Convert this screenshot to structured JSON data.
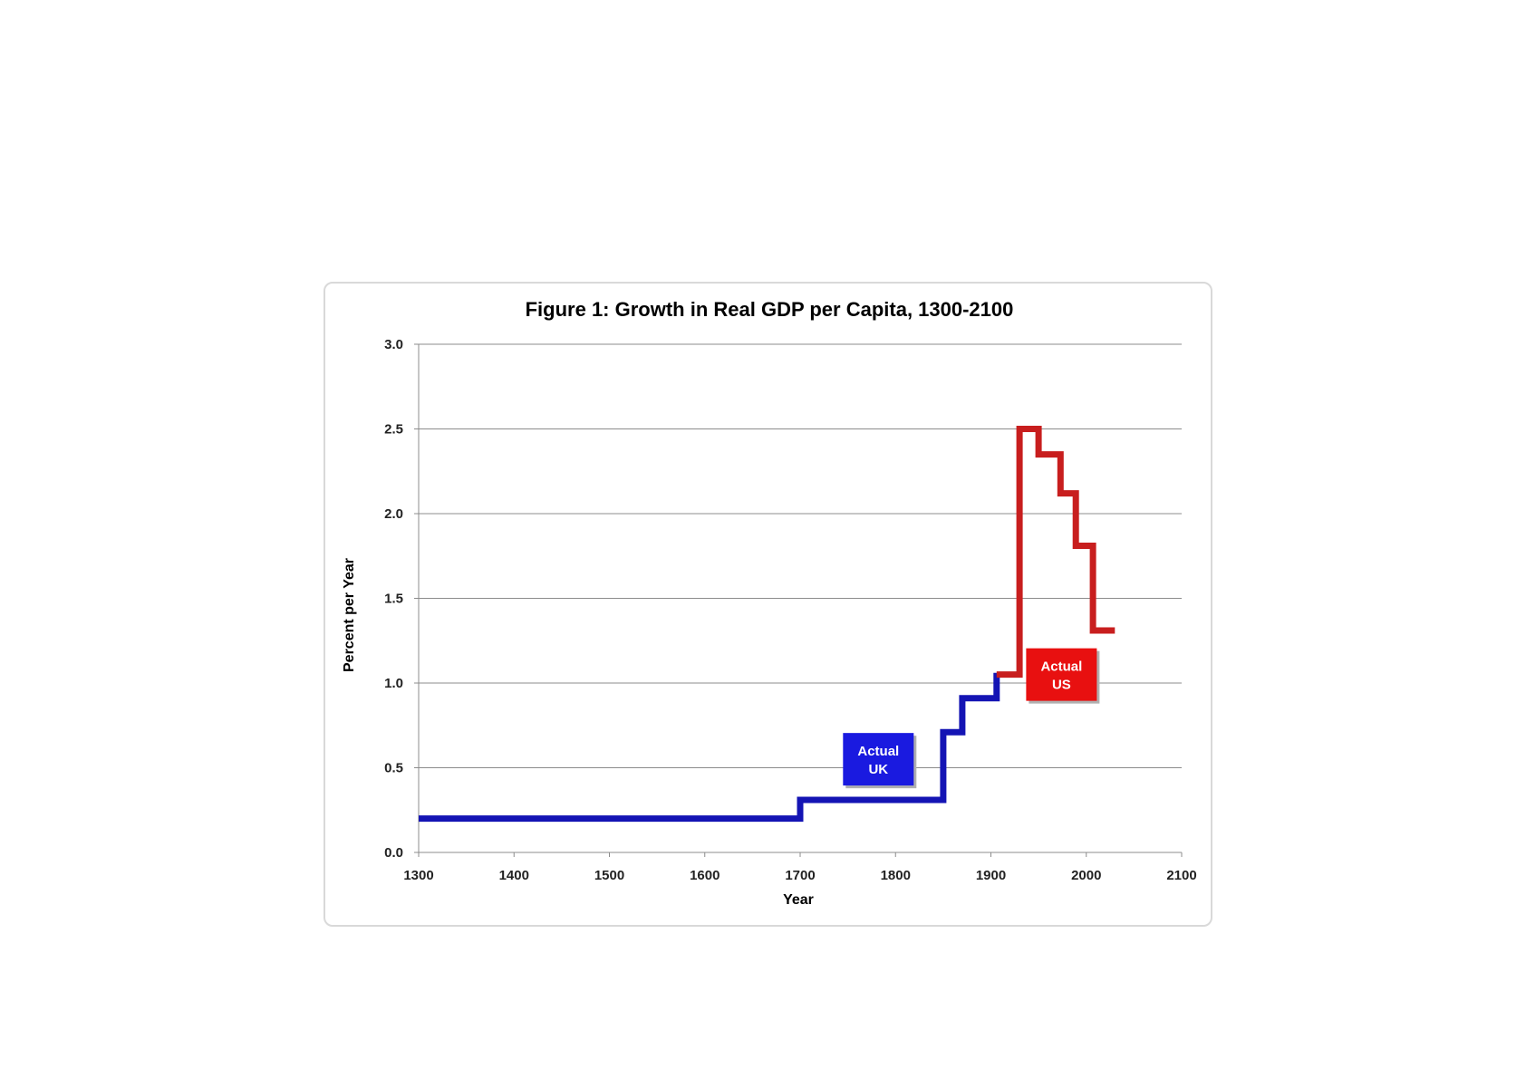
{
  "chart_data": {
    "type": "line",
    "title": "Figure 1: Growth in Real GDP per Capita, 1300-2100",
    "xlabel": "Year",
    "ylabel": "Percent per Year",
    "xlim": [
      1300,
      2100
    ],
    "ylim": [
      0,
      3.0
    ],
    "x_ticks": [
      "1300",
      "1400",
      "1500",
      "1600",
      "1700",
      "1800",
      "1900",
      "2000",
      "2100"
    ],
    "y_ticks": [
      "0.0",
      "0.5",
      "1.0",
      "1.5",
      "2.0",
      "2.5",
      "3.0"
    ],
    "grid": true,
    "step": true,
    "series": [
      {
        "color": "#1414b4",
        "points": [
          [
            1300,
            0.2
          ],
          [
            1700,
            0.2
          ],
          [
            1700,
            0.31
          ],
          [
            1850,
            0.31
          ],
          [
            1850,
            0.71
          ],
          [
            1870,
            0.71
          ],
          [
            1870,
            0.91
          ],
          [
            1906,
            0.91
          ],
          [
            1906,
            1.06
          ]
        ]
      },
      {
        "color": "#c81e1e",
        "points": [
          [
            1906,
            1.05
          ],
          [
            1930,
            1.05
          ],
          [
            1930,
            2.5
          ],
          [
            1950,
            2.5
          ],
          [
            1950,
            2.35
          ],
          [
            1973,
            2.35
          ],
          [
            1973,
            2.12
          ],
          [
            1989,
            2.12
          ],
          [
            1989,
            1.81
          ],
          [
            2007,
            1.81
          ],
          [
            2007,
            1.31
          ],
          [
            2030,
            1.31
          ]
        ]
      }
    ],
    "annotations": [
      {
        "line1": "Actual",
        "line2": "UK",
        "x": 1782,
        "y": 0.55,
        "color": "#1a1ae0"
      },
      {
        "line1": "Actual",
        "line2": "US",
        "x": 1974,
        "y": 1.05,
        "color": "#e81010"
      }
    ]
  }
}
